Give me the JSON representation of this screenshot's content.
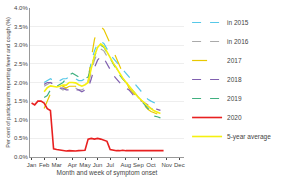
{
  "chart_data": {
    "type": "line",
    "xlabel": "Month and week of symptom onset",
    "ylabel": "Per cent of participants reporting fever and cough (%)",
    "categories": [
      "Jan",
      null,
      null,
      null,
      "Feb",
      null,
      null,
      null,
      "Mar",
      null,
      null,
      null,
      null,
      "Apr",
      null,
      null,
      null,
      "May",
      null,
      null,
      null,
      "Jun",
      null,
      null,
      null,
      "Jul",
      null,
      null,
      null,
      null,
      "Aug",
      null,
      null,
      null,
      "Sep",
      null,
      null,
      null,
      "Oct",
      null,
      null,
      null,
      null,
      "Nov",
      null,
      null,
      null,
      "Dec",
      null
    ],
    "ylim": [
      0.0,
      4.0
    ],
    "yticks": [
      {
        "value": 0.0,
        "label": "0.0%"
      },
      {
        "value": 0.5,
        "label": "0.5%"
      },
      {
        "value": 1.0,
        "label": "1.0%"
      },
      {
        "value": 1.5,
        "label": "1.5%"
      },
      {
        "value": 2.0,
        "label": "2.0%"
      },
      {
        "value": 2.5,
        "label": "2.5%"
      },
      {
        "value": 3.0,
        "label": "3.0%"
      },
      {
        "value": 3.5,
        "label": "3.5%"
      },
      {
        "value": 4.0,
        "label": "4.0%"
      }
    ],
    "grid": true,
    "legend": "upper right",
    "series": [
      {
        "name": "in 2015",
        "color": "#56c8e8",
        "line_style": "dash",
        "values": [
          null,
          null,
          null,
          null,
          2.0,
          2.05,
          2.1,
          2.05,
          2.0,
          2.05,
          2.1,
          2.1,
          2.15,
          2.1,
          2.1,
          2.05,
          2.05,
          2.1,
          2.15,
          2.55,
          2.85,
          3.05,
          3.1,
          3.05,
          2.9,
          2.75,
          2.65,
          2.55,
          2.45,
          2.35,
          2.25,
          2.15,
          2.05,
          1.95,
          1.85,
          1.75,
          1.65,
          1.55,
          1.5,
          1.45,
          1.42,
          1.4,
          null,
          null,
          null,
          null,
          null,
          null,
          null
        ]
      },
      {
        "name": "in 2016",
        "color": "#aaaaaa",
        "line_style": "dash",
        "values": [
          null,
          null,
          null,
          null,
          1.9,
          1.95,
          2.0,
          1.95,
          1.9,
          1.85,
          1.8,
          1.85,
          1.9,
          1.85,
          1.85,
          1.8,
          1.8,
          1.85,
          1.9,
          2.3,
          2.6,
          2.8,
          2.9,
          2.85,
          2.7,
          2.6,
          2.5,
          2.4,
          2.2,
          2.1,
          2.0,
          1.9,
          1.8,
          1.7,
          1.6,
          1.5,
          1.4,
          1.35,
          1.3,
          1.25,
          1.22,
          1.2,
          null,
          null,
          null,
          null,
          null,
          null,
          null
        ]
      },
      {
        "name": "2017",
        "color": "#e8c800",
        "line_style": "longdash",
        "values": [
          null,
          null,
          null,
          null,
          1.3,
          1.5,
          1.7,
          1.75,
          1.8,
          1.85,
          1.9,
          1.85,
          1.9,
          1.9,
          1.9,
          1.85,
          1.85,
          1.9,
          2.05,
          2.65,
          3.15,
          3.45,
          3.5,
          3.42,
          3.25,
          3.05,
          2.85,
          2.65,
          2.45,
          2.25,
          2.05,
          1.85,
          1.75,
          1.65,
          1.55,
          1.45,
          1.38,
          1.28,
          1.22,
          1.18,
          1.15,
          1.12,
          null,
          null,
          null,
          null,
          null,
          null,
          null
        ]
      },
      {
        "name": "2018",
        "color": "#8060b0",
        "line_style": "dash",
        "values": [
          null,
          null,
          null,
          null,
          1.95,
          2.0,
          2.0,
          1.95,
          1.9,
          1.85,
          1.85,
          1.8,
          1.8,
          1.85,
          1.8,
          1.8,
          1.75,
          1.8,
          1.85,
          2.1,
          2.4,
          2.6,
          2.7,
          2.65,
          2.5,
          2.35,
          2.2,
          2.1,
          2.0,
          1.9,
          1.85,
          1.8,
          1.7,
          1.6,
          1.55,
          1.5,
          1.45,
          1.4,
          1.35,
          1.3,
          1.28,
          1.25,
          null,
          null,
          null,
          null,
          null,
          null,
          null
        ]
      },
      {
        "name": "2019",
        "color": "#40b080",
        "line_style": "dash",
        "values": [
          null,
          null,
          null,
          null,
          1.6,
          1.65,
          1.8,
          1.85,
          1.9,
          1.95,
          2.0,
          2.1,
          2.2,
          2.25,
          2.2,
          2.15,
          2.1,
          2.1,
          2.15,
          2.4,
          2.7,
          2.9,
          3.0,
          2.95,
          2.8,
          2.65,
          2.5,
          2.35,
          2.2,
          2.1,
          2.0,
          1.9,
          1.8,
          1.7,
          1.6,
          1.5,
          1.4,
          1.3,
          1.25,
          1.1,
          1.08,
          1.05,
          null,
          null,
          null,
          null,
          null,
          null,
          null
        ]
      },
      {
        "name": "2020",
        "color": "#e82020",
        "line_style": "solid",
        "values": [
          1.45,
          1.4,
          1.5,
          1.5,
          1.45,
          1.3,
          1.25,
          0.22,
          0.2,
          0.18,
          0.17,
          0.16,
          0.17,
          0.16,
          0.16,
          0.17,
          0.18,
          0.18,
          0.48,
          0.5,
          0.48,
          0.5,
          0.48,
          0.45,
          0.42,
          0.2,
          0.18,
          0.17,
          0.17,
          0.18,
          0.17,
          0.17,
          0.18,
          0.17,
          0.17,
          0.18,
          0.17,
          0.17,
          0.18,
          0.17,
          0.17,
          0.18,
          0.17,
          null,
          null,
          null,
          null,
          null,
          null
        ]
      },
      {
        "name": "5-year average",
        "color": "#f5f010",
        "line_style": "solid",
        "values": [
          null,
          null,
          null,
          null,
          1.75,
          1.86,
          1.91,
          1.9,
          1.88,
          1.9,
          1.93,
          1.93,
          2.0,
          2.0,
          1.99,
          1.94,
          1.9,
          1.94,
          2.0,
          2.38,
          2.72,
          2.94,
          3.04,
          2.97,
          2.81,
          2.66,
          2.52,
          2.39,
          2.24,
          2.12,
          2.01,
          1.9,
          1.8,
          1.7,
          1.6,
          1.52,
          1.44,
          1.36,
          1.3,
          1.24,
          1.2,
          1.17,
          null,
          null,
          null,
          null,
          null,
          null,
          null
        ]
      }
    ]
  }
}
